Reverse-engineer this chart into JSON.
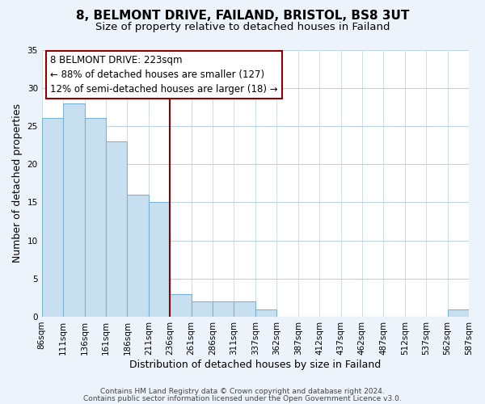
{
  "title": "8, BELMONT DRIVE, FAILAND, BRISTOL, BS8 3UT",
  "subtitle": "Size of property relative to detached houses in Failand",
  "xlabel": "Distribution of detached houses by size in Failand",
  "ylabel": "Number of detached properties",
  "footer_line1": "Contains HM Land Registry data © Crown copyright and database right 2024.",
  "footer_line2": "Contains public sector information licensed under the Open Government Licence v3.0.",
  "bin_edges": [
    86,
    111,
    136,
    161,
    186,
    211,
    236,
    261,
    286,
    311,
    337,
    362,
    387,
    412,
    437,
    462,
    487,
    512,
    537,
    562,
    587
  ],
  "bin_labels": [
    "86sqm",
    "111sqm",
    "136sqm",
    "161sqm",
    "186sqm",
    "211sqm",
    "236sqm",
    "261sqm",
    "286sqm",
    "311sqm",
    "337sqm",
    "362sqm",
    "387sqm",
    "412sqm",
    "437sqm",
    "462sqm",
    "487sqm",
    "512sqm",
    "537sqm",
    "562sqm",
    "587sqm"
  ],
  "bar_heights": [
    26,
    28,
    26,
    23,
    16,
    15,
    3,
    2,
    2,
    2,
    1,
    0,
    0,
    0,
    0,
    0,
    0,
    0,
    0,
    1
  ],
  "bar_color": "#c8dff0",
  "bar_edge_color": "#7ab4d4",
  "vline_pos": 6,
  "vline_color": "#8b0000",
  "annotation_text_line1": "8 BELMONT DRIVE: 223sqm",
  "annotation_text_line2": "← 88% of detached houses are smaller (127)",
  "annotation_text_line3": "12% of semi-detached houses are larger (18) →",
  "ylim": [
    0,
    35
  ],
  "yticks": [
    0,
    5,
    10,
    15,
    20,
    25,
    30,
    35
  ],
  "bg_color": "#edf3fb",
  "plot_bg_color": "#ffffff",
  "grid_color": "#b8d0e8",
  "title_fontsize": 11,
  "subtitle_fontsize": 9.5,
  "axis_label_fontsize": 9,
  "tick_fontsize": 7.5,
  "annotation_fontsize": 8.5,
  "footer_fontsize": 6.5
}
